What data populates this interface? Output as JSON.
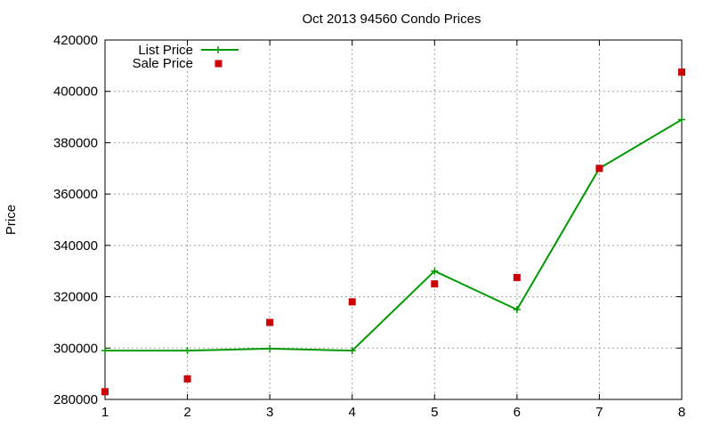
{
  "chart_data": {
    "type": "line",
    "title": "Oct 2013 94560 Condo Prices",
    "xlabel": "",
    "ylabel": "Price",
    "x": [
      1,
      2,
      3,
      4,
      5,
      6,
      7,
      8
    ],
    "xlim": [
      1,
      8
    ],
    "ylim": [
      280000,
      420000
    ],
    "yticks": [
      280000,
      300000,
      320000,
      340000,
      360000,
      380000,
      400000,
      420000
    ],
    "xticks": [
      1,
      2,
      3,
      4,
      5,
      6,
      7,
      8
    ],
    "grid": true,
    "legend_position": "top-left",
    "series": [
      {
        "name": "List Price",
        "style": "line-with-plus-markers",
        "color": "#009900",
        "values": [
          299000,
          299000,
          299800,
          299000,
          330000,
          315000,
          370000,
          389000
        ]
      },
      {
        "name": "Sale Price",
        "style": "square-markers",
        "color": "#cc0000",
        "values": [
          283000,
          288000,
          310000,
          318000,
          325000,
          327500,
          370000,
          407500
        ]
      }
    ]
  }
}
